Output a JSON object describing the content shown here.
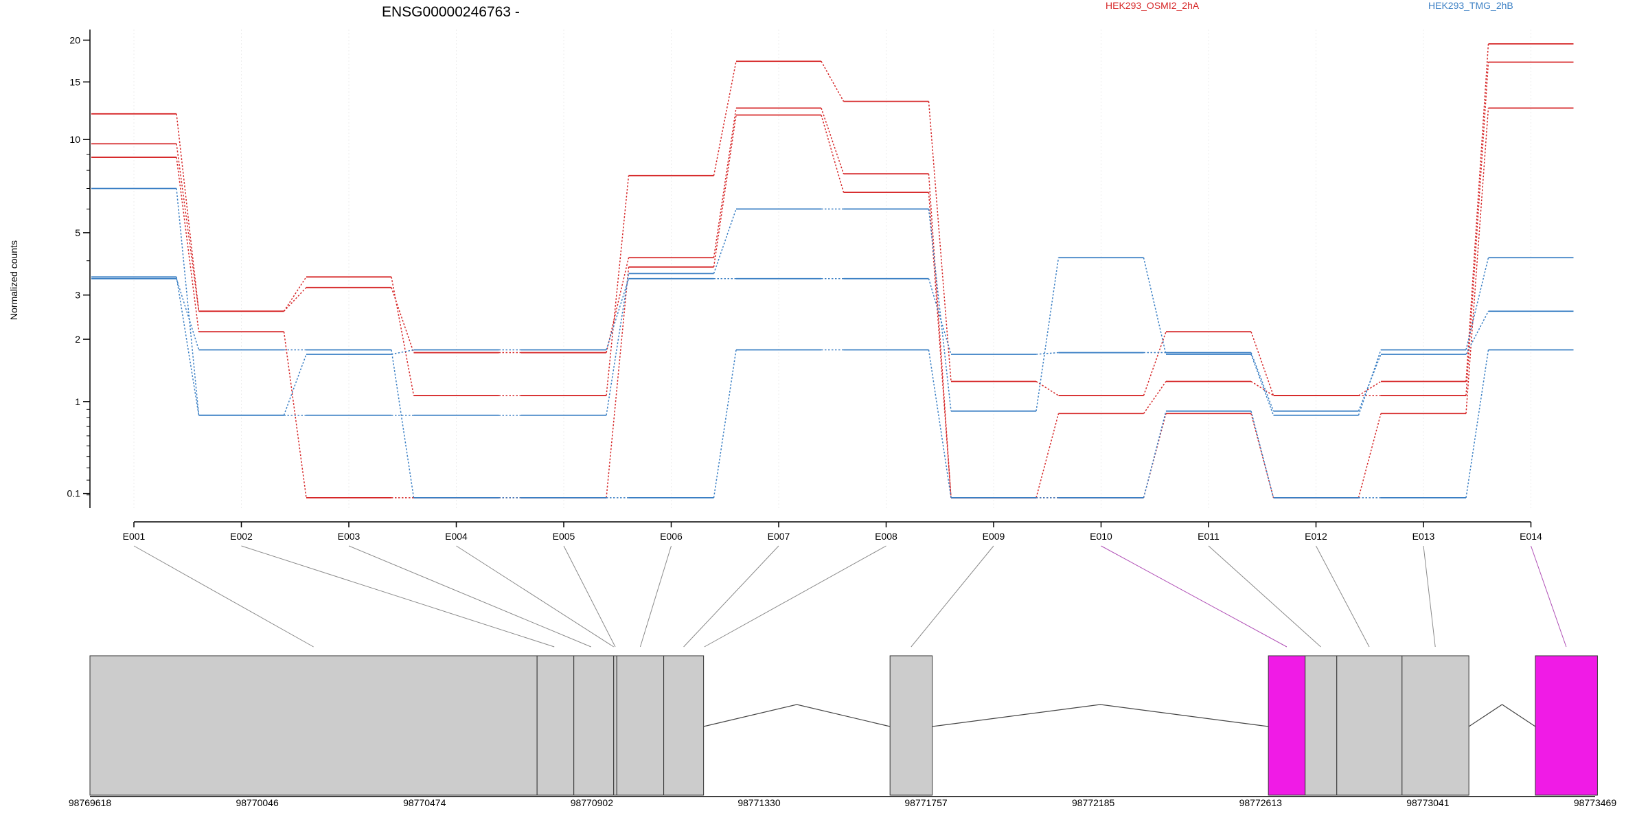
{
  "chart_data": {
    "type": "line",
    "title": "ENSG00000246763 -",
    "ylabel": "Normalized counts",
    "y_scale": "log1p",
    "y_ticks": [
      0.1,
      1,
      2,
      3,
      5,
      10,
      15,
      20
    ],
    "y_tick_labels": [
      "0.1",
      "1",
      "2",
      "3",
      "5",
      "10",
      "15",
      "20"
    ],
    "categories": [
      "E001",
      "E002",
      "E003",
      "E004",
      "E005",
      "E006",
      "E007",
      "E008",
      "E009",
      "E010",
      "E011",
      "E012",
      "E013",
      "E014"
    ],
    "legend": [
      {
        "name": "HEK293_OSMI2_2hA",
        "color": "#d62728"
      },
      {
        "name": "HEK293_TMG_2hB",
        "color": "#3a7fc4"
      }
    ],
    "series": [
      {
        "group": "HEK293_OSMI2_2hA",
        "color": "#d62728",
        "values": [
          12.0,
          2.6,
          3.5,
          1.08,
          1.08,
          7.7,
          17.3,
          13.1,
          1.28,
          1.08,
          2.15,
          1.08,
          1.28,
          19.5
        ]
      },
      {
        "group": "HEK293_OSMI2_2hA",
        "color": "#d62728",
        "values": [
          9.7,
          2.6,
          3.2,
          1.75,
          1.75,
          4.1,
          12.5,
          7.8,
          0.07,
          0.85,
          1.28,
          1.08,
          1.08,
          17.2
        ]
      },
      {
        "group": "HEK293_OSMI2_2hA",
        "color": "#d62728",
        "values": [
          8.8,
          2.15,
          0.07,
          0.07,
          0.07,
          3.8,
          11.9,
          6.8,
          0.07,
          0.07,
          0.85,
          0.07,
          0.85,
          12.5
        ]
      },
      {
        "group": "HEK293_TMG_2hB",
        "color": "#3a7fc4",
        "values": [
          7.0,
          0.83,
          0.83,
          0.83,
          0.83,
          3.6,
          6.0,
          6.0,
          0.88,
          4.1,
          1.72,
          0.83,
          1.8,
          4.1
        ]
      },
      {
        "group": "HEK293_TMG_2hB",
        "color": "#3a7fc4",
        "values": [
          3.5,
          0.83,
          1.72,
          1.8,
          1.8,
          3.45,
          3.45,
          3.45,
          1.72,
          1.75,
          1.75,
          0.88,
          1.72,
          2.6
        ]
      },
      {
        "group": "HEK293_TMG_2hB",
        "color": "#3a7fc4",
        "values": [
          3.45,
          1.8,
          1.8,
          0.07,
          0.07,
          0.07,
          1.8,
          1.8,
          0.07,
          0.07,
          0.88,
          0.07,
          0.07,
          1.8
        ]
      }
    ],
    "genomic_axis": {
      "ticks": [
        98769618,
        98770046,
        98770474,
        98770902,
        98771330,
        98771757,
        98772185,
        98772613,
        98773041,
        98773469
      ],
      "tick_labels": [
        "98769618",
        "98770046",
        "98770474",
        "98770902",
        "98771330",
        "98771757",
        "98772185",
        "98772613",
        "98773041",
        "98773469"
      ]
    },
    "gene_model": {
      "exons": [
        {
          "start": 98769618,
          "end": 98770762,
          "color": "#cccccc"
        },
        {
          "start": 98770762,
          "end": 98770856,
          "color": "#cccccc"
        },
        {
          "start": 98770856,
          "end": 98770958,
          "color": "#cccccc"
        },
        {
          "start": 98770958,
          "end": 98770966,
          "color": "#cccccc"
        },
        {
          "start": 98770966,
          "end": 98771086,
          "color": "#cccccc"
        },
        {
          "start": 98771086,
          "end": 98771188,
          "color": "#cccccc"
        },
        {
          "start": 98771665,
          "end": 98771773,
          "color": "#cccccc"
        },
        {
          "start": 98772633,
          "end": 98772727,
          "color": "#f01be6"
        },
        {
          "start": 98772727,
          "end": 98772808,
          "color": "#cccccc"
        },
        {
          "start": 98772808,
          "end": 98772975,
          "color": "#cccccc"
        },
        {
          "start": 98772975,
          "end": 98773146,
          "color": "#cccccc"
        },
        {
          "start": 98773316,
          "end": 98773475,
          "color": "#f01be6"
        }
      ],
      "introns": [
        {
          "start": 98771188,
          "end": 98771665
        },
        {
          "start": 98771773,
          "end": 98772633
        },
        {
          "start": 98773146,
          "end": 98773316
        }
      ],
      "bin_links": [
        {
          "bin": "E001",
          "pos": 98770190,
          "color": "#8a8a8a"
        },
        {
          "bin": "E002",
          "pos": 98770806,
          "color": "#8a8a8a"
        },
        {
          "bin": "E003",
          "pos": 98770900,
          "color": "#8a8a8a"
        },
        {
          "bin": "E004",
          "pos": 98770958,
          "color": "#8a8a8a"
        },
        {
          "bin": "E005",
          "pos": 98770962,
          "color": "#8a8a8a"
        },
        {
          "bin": "E006",
          "pos": 98771026,
          "color": "#8a8a8a"
        },
        {
          "bin": "E007",
          "pos": 98771137,
          "color": "#8a8a8a"
        },
        {
          "bin": "E008",
          "pos": 98771190,
          "color": "#8a8a8a"
        },
        {
          "bin": "E009",
          "pos": 98771719,
          "color": "#8a8a8a"
        },
        {
          "bin": "E010",
          "pos": 98772680,
          "color": "#b04fb6"
        },
        {
          "bin": "E011",
          "pos": 98772767,
          "color": "#8a8a8a"
        },
        {
          "bin": "E012",
          "pos": 98772891,
          "color": "#8a8a8a"
        },
        {
          "bin": "E013",
          "pos": 98773060,
          "color": "#8a8a8a"
        },
        {
          "bin": "E014",
          "pos": 98773395,
          "color": "#b04fb6"
        }
      ]
    }
  }
}
